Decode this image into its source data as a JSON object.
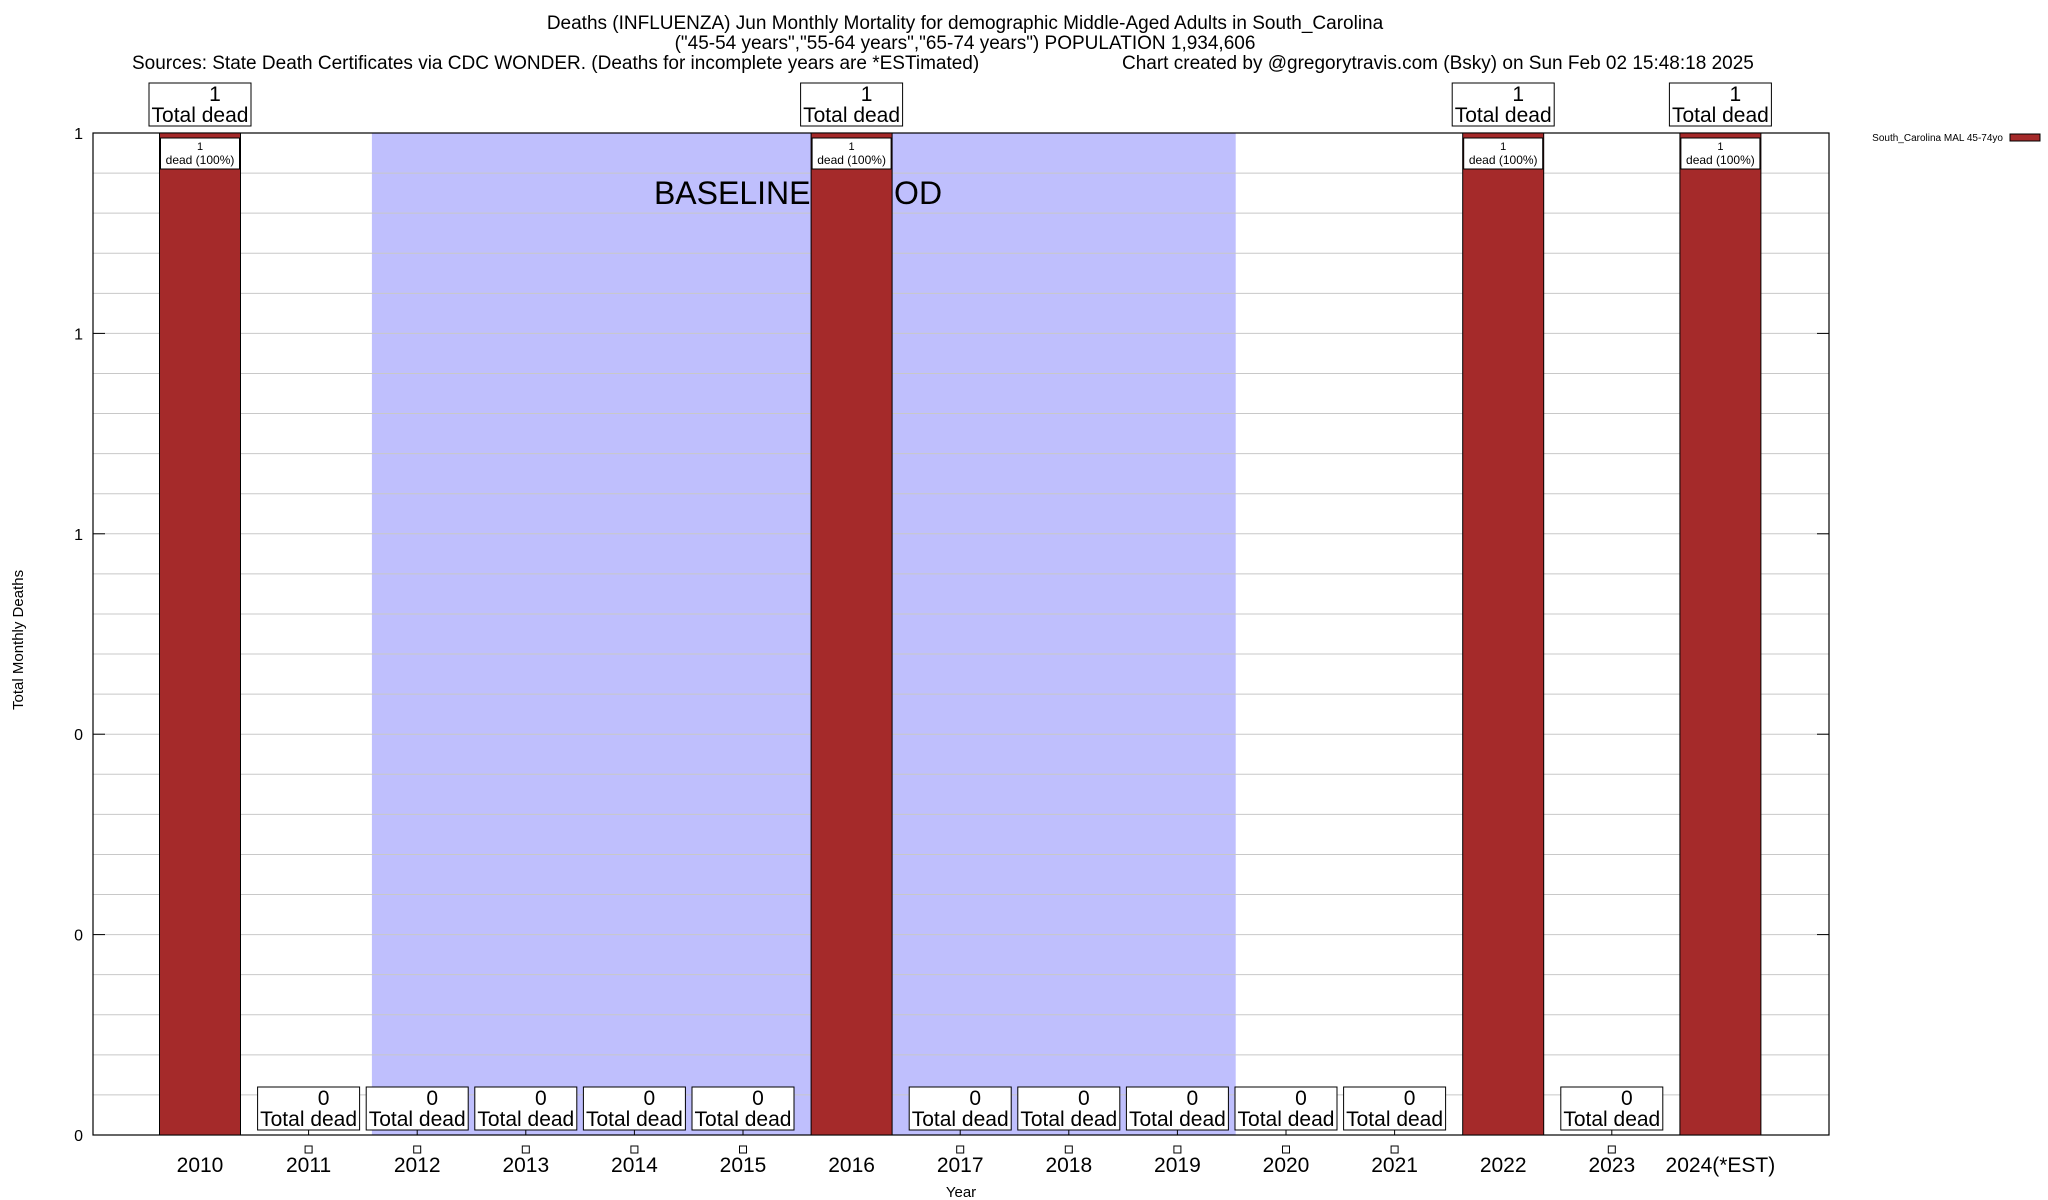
{
  "header": {
    "line1": "Deaths (INFLUENZA) Jun Monthly Mortality for demographic Middle-Aged Adults in South_Carolina",
    "line2": "(\"45-54 years\",\"55-64 years\",\"65-74 years\") POPULATION 1,934,606",
    "line3_left": "Sources: State Death Certificates via CDC WONDER. (Deaths for incomplete years are *ESTimated)",
    "line3_right": "Chart created by @gregorytravis.com (Bsky) on Sun Feb 02 15:48:18 2025"
  },
  "colors": {
    "bar": "#a52a2a",
    "baseline_band": "#bfbffd",
    "grid": "#c8c8c8"
  },
  "chart_data": {
    "type": "bar",
    "title": "Deaths (INFLUENZA) Jun Monthly Mortality for demographic Middle-Aged Adults in South_Carolina",
    "xlabel": "Year",
    "ylabel": "Total Monthly Deaths",
    "categories": [
      "2010",
      "2011",
      "2012",
      "2013",
      "2014",
      "2015",
      "2016",
      "2017",
      "2018",
      "2019",
      "2020",
      "2021",
      "2022",
      "2023",
      "2024(*EST)"
    ],
    "series": [
      {
        "name": "South_Carolina MAL 45-74yo",
        "values": [
          1,
          0,
          0,
          0,
          0,
          0,
          1,
          0,
          0,
          0,
          0,
          0,
          1,
          0,
          1
        ]
      }
    ],
    "ylim": [
      0,
      1
    ],
    "y_tick_values": [
      0,
      0.2,
      0.4,
      0.6,
      0.8,
      1
    ],
    "y_tick_labels": [
      "0",
      "0",
      "0",
      "1",
      "1",
      "1"
    ],
    "total_label_suffix": "Total dead",
    "inner_labels": [
      "dead (100%)",
      "",
      "",
      "",
      "",
      "",
      "dead (100%)",
      "",
      "",
      "",
      "",
      "",
      "dead (100%)",
      "",
      "dead (100%)"
    ],
    "baseline_period": {
      "label": "BASELINE PERIOD",
      "from": "2012",
      "to": "2019"
    },
    "legend": {
      "position": "top-right",
      "entry": "South_Carolina MAL 45-74yo"
    },
    "grid": true
  }
}
